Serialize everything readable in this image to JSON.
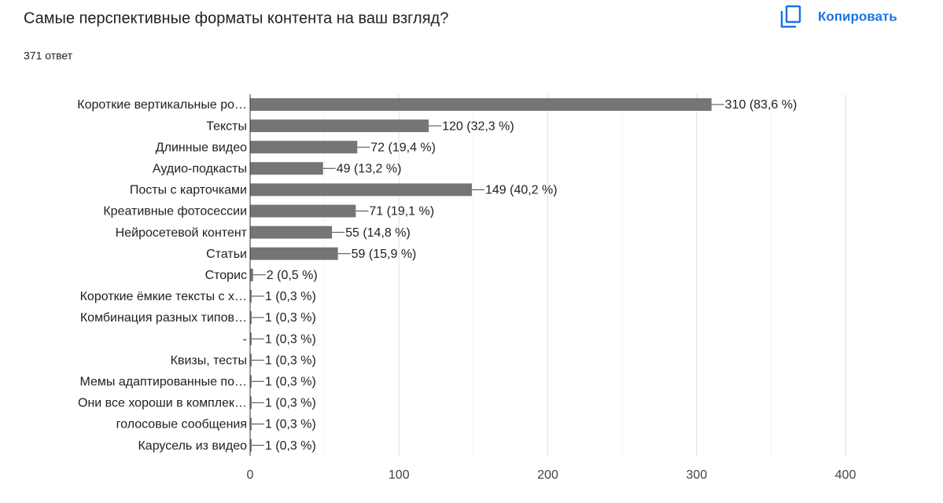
{
  "chart_data": {
    "type": "bar",
    "orientation": "horizontal",
    "title": "Самые перспективные форматы контента на ваш взгляд?",
    "subtitle": "371 ответ",
    "copy_button": "Копировать",
    "categories": [
      "Короткие вертикальные ро…",
      "Тексты",
      "Длинные видео",
      "Аудио-подкасты",
      "Посты с карточками",
      "Креативные фотосессии",
      "Нейросетевой контент",
      "Статьи",
      "Сторис",
      "Короткие ёмкие тексты с х…",
      "Комбинация разных типов…",
      "-",
      "Квизы, тесты",
      "Мемы адаптированные по…",
      "Они все хороши в комплек…",
      "голосовые сообщения",
      "Карусель из видео"
    ],
    "values": [
      310,
      120,
      72,
      49,
      149,
      71,
      55,
      59,
      2,
      1,
      1,
      1,
      1,
      1,
      1,
      1,
      1
    ],
    "value_labels": [
      "310 (83,6 %)",
      "120 (32,3 %)",
      "72 (19,4 %)",
      "49 (13,2 %)",
      "149 (40,2 %)",
      "71 (19,1 %)",
      "55 (14,8 %)",
      "59 (15,9 %)",
      "2 (0,5 %)",
      "1 (0,3 %)",
      "1 (0,3 %)",
      "1 (0,3 %)",
      "1 (0,3 %)",
      "1 (0,3 %)",
      "1 (0,3 %)",
      "1 (0,3 %)",
      "1 (0,3 %)"
    ],
    "color": "#757575",
    "xlim": [
      0,
      400
    ],
    "xticks": [
      0,
      100,
      200,
      300,
      400
    ],
    "minor_xticks": [
      50,
      150,
      250,
      350
    ],
    "grid": true
  }
}
